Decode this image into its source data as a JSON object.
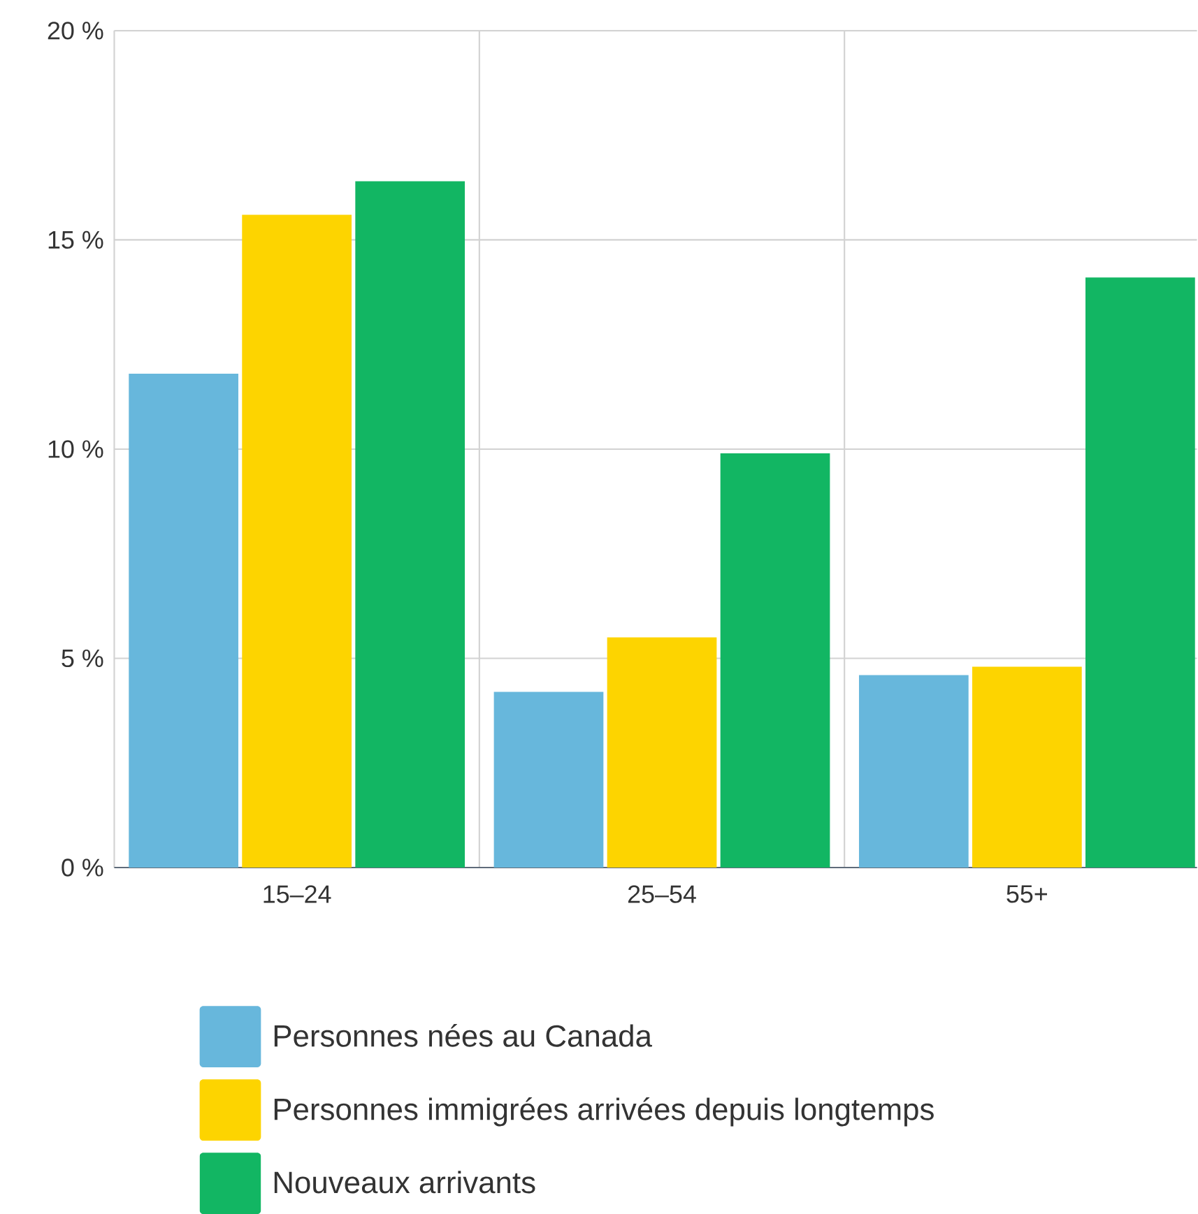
{
  "chart_data": {
    "type": "bar",
    "categories": [
      "15–24",
      "25–54",
      "55+"
    ],
    "series": [
      {
        "name": "Personnes nées au Canada",
        "color": "#67b7dc",
        "values": [
          11.8,
          4.2,
          4.6
        ]
      },
      {
        "name": "Personnes immigrées arrivées depuis longtemps",
        "color": "#fdd400",
        "values": [
          15.6,
          5.5,
          4.8
        ]
      },
      {
        "name": "Nouveaux arrivants",
        "color": "#12b663",
        "values": [
          16.4,
          9.9,
          14.1
        ]
      }
    ],
    "ylim": [
      0,
      20
    ],
    "yticks": [
      {
        "value": 0,
        "label": "0 %"
      },
      {
        "value": 5,
        "label": "5 %"
      },
      {
        "value": 10,
        "label": "10 %"
      },
      {
        "value": 15,
        "label": "15 %"
      },
      {
        "value": 20,
        "label": "20 %"
      }
    ],
    "grid": true,
    "legend": "bottom"
  }
}
